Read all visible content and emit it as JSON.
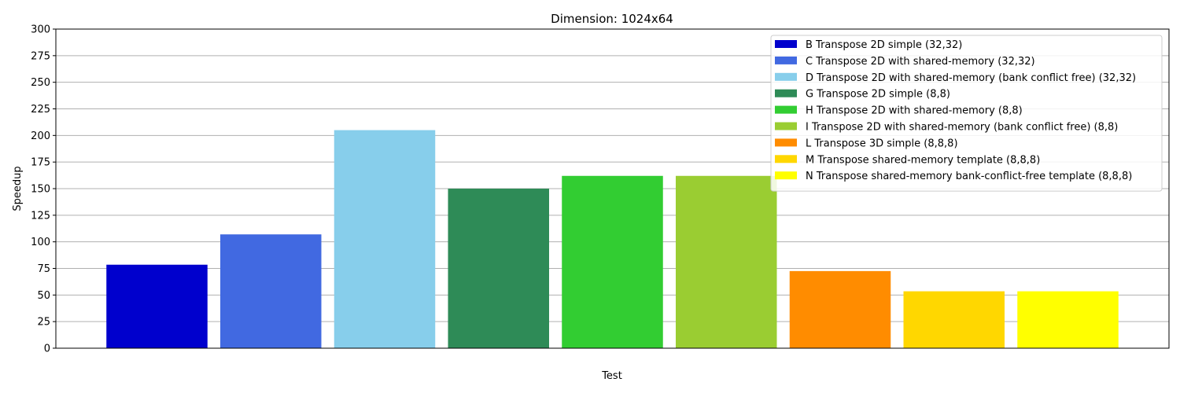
{
  "chart_data": {
    "type": "bar",
    "title": "Dimension: 1024x64",
    "xlabel": "Test",
    "ylabel": "Speedup",
    "ylim": [
      0,
      300
    ],
    "yticks": [
      0,
      25,
      50,
      75,
      100,
      125,
      150,
      175,
      200,
      225,
      250,
      275,
      300
    ],
    "grid": "y",
    "legend_position": "top-right",
    "series": [
      {
        "name": "B Transpose 2D simple (32,32)",
        "value": 78.5,
        "color": "#0000cd"
      },
      {
        "name": "C Transpose 2D with shared-memory (32,32)",
        "value": 107,
        "color": "#4169e1"
      },
      {
        "name": "D Transpose 2D with shared-memory (bank conflict free) (32,32)",
        "value": 205,
        "color": "#87ceeb"
      },
      {
        "name": "G Transpose 2D simple (8,8)",
        "value": 150,
        "color": "#2e8b57"
      },
      {
        "name": "H Transpose 2D with shared-memory (8,8)",
        "value": 162,
        "color": "#32cd32"
      },
      {
        "name": "I Transpose 2D with shared-memory (bank conflict free) (8,8)",
        "value": 162,
        "color": "#9acd32"
      },
      {
        "name": "L Transpose 3D simple (8,8,8)",
        "value": 72.5,
        "color": "#ff8c00"
      },
      {
        "name": "M Transpose shared-memory template (8,8,8)",
        "value": 53.5,
        "color": "#ffd700"
      },
      {
        "name": "N Transpose shared-memory bank-conflict-free template (8,8,8)",
        "value": 53.5,
        "color": "#ffff00"
      }
    ]
  }
}
